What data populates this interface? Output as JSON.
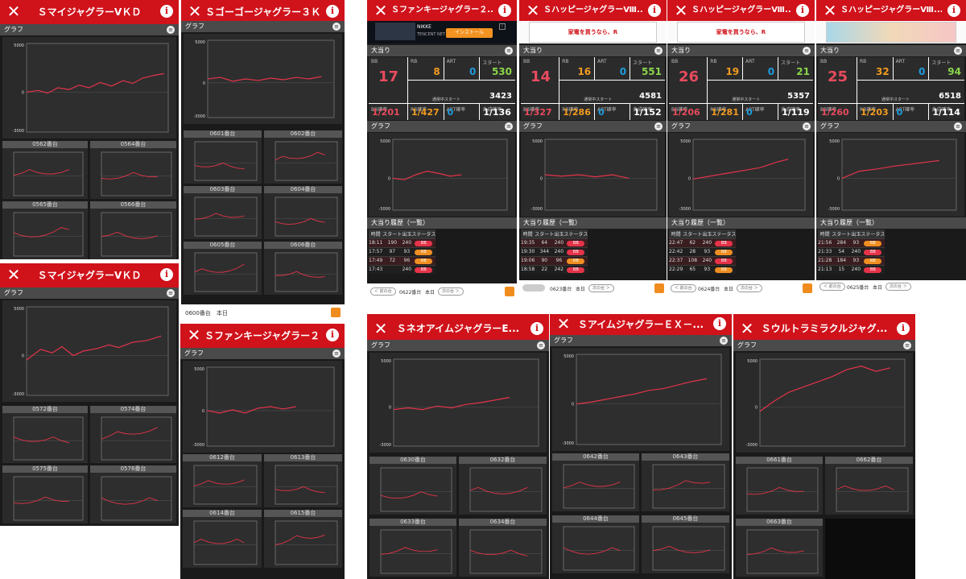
{
  "colors": {
    "header": "#d0121b",
    "line": "#e3344a",
    "panel": "#2a2a2a"
  },
  "icons": {
    "close": "close-icon",
    "info": "info-icon",
    "toggle": "collapse-icon"
  },
  "screens": [
    {
      "title": "ＳマイジャグラーⅤＫＤ",
      "section": "グラフ",
      "axis": {
        "top": "5000",
        "mid": "0",
        "bot": "-3000"
      },
      "minis": [
        {
          "label": "0562番台"
        },
        {
          "label": "0564番台"
        },
        {
          "label": "0565番台"
        },
        {
          "label": "0566番台"
        }
      ]
    },
    {
      "title": "Ｓゴーゴージャグラー３Ｋ...",
      "section": "グラフ",
      "axis": {
        "top": "5000",
        "mid": "0",
        "bot": "-3000"
      },
      "minis": [
        {
          "label": "0601番台"
        },
        {
          "label": "0602番台"
        },
        {
          "label": "0603番台"
        },
        {
          "label": "0604番台"
        },
        {
          "label": "0605番台"
        },
        {
          "label": "0606番台"
        }
      ],
      "footer": "0600番台　本日"
    },
    {
      "title": "ＳマイジャグラーⅤＫＤ",
      "section": "グラフ",
      "axis": {
        "top": "5000",
        "mid": "0",
        "bot": "-3000"
      },
      "minis": [
        {
          "label": "0572番台"
        },
        {
          "label": "0574番台"
        },
        {
          "label": "0575番台"
        },
        {
          "label": "0576番台"
        }
      ]
    },
    {
      "title": "Ｓファンキージャグラー２...",
      "section": "グラフ",
      "axis": {
        "top": "5000",
        "mid": "0",
        "bot": "-3000"
      },
      "minis": [
        {
          "label": "0612番台"
        },
        {
          "label": "0613番台"
        },
        {
          "label": "0614番台"
        },
        {
          "label": "0615番台"
        }
      ]
    },
    {
      "title": "ＳネオアイムジャグラーE...",
      "section": "グラフ",
      "axis": {
        "top": "5000",
        "mid": "0",
        "bot": "-3000"
      },
      "minis": [
        {
          "label": "0630番台"
        },
        {
          "label": "0632番台"
        },
        {
          "label": "0633番台"
        },
        {
          "label": "0634番台"
        }
      ]
    },
    {
      "title": "ＳアイムジャグラーＥＸ－...",
      "section": "グラフ",
      "axis": {
        "top": "5000",
        "mid": "0",
        "bot": "-3000"
      },
      "minis": [
        {
          "label": "0642番台"
        },
        {
          "label": "0643番台"
        },
        {
          "label": "0644番台"
        },
        {
          "label": "0645番台"
        }
      ]
    },
    {
      "title": "Ｓウルトラミラクルジャグ...",
      "section": "グラフ",
      "axis": {
        "top": "5000",
        "mid": "0",
        "bot": "-3000"
      },
      "minis": [
        {
          "label": "0661番台"
        },
        {
          "label": "0662番台"
        },
        {
          "label": "0663番台"
        }
      ]
    }
  ],
  "detail_common": {
    "sec_hits": "大当り",
    "sec_graph": "グラフ",
    "sec_hist": "大当り履歴（一覧）",
    "lbl_bb": "BB",
    "lbl_rb": "RB",
    "lbl_art": "ART",
    "lbl_start": "スタート",
    "lbl_cur": "通常中スタート",
    "lbl_bbp": "BB確率",
    "lbl_rbp": "RB確率",
    "lbl_artp": "ART確率",
    "lbl_total": "合成確率",
    "cols": [
      "時間",
      "スタート",
      "出玉",
      "ステータス"
    ],
    "prev": "＜ 前の台",
    "next": "次の台 ＞",
    "today": "本日",
    "axis": {
      "top": "5000",
      "mid": "0",
      "bot": "-3000"
    }
  },
  "details": [
    {
      "title": "Ｓファンキージャグラー２...",
      "ad": {
        "name": "NIKKE",
        "company": "TENCENT NET",
        "button": "インストール"
      },
      "bb": "17",
      "rb": "8",
      "art": "0",
      "start": "530",
      "cur": "3423",
      "bbp": "1/201",
      "rbp": "1/427",
      "artp": "0",
      "total": "1/136",
      "rows": [
        [
          "18:11",
          "190",
          "240",
          "BB"
        ],
        [
          "17:57",
          "97",
          "93",
          "RB"
        ],
        [
          "17:49",
          "72",
          "96",
          "RB"
        ],
        [
          "17:43",
          "",
          "240",
          "BB"
        ]
      ],
      "unit": "0622番台"
    },
    {
      "title": "ＳハッピージャグラーⅧ...",
      "ad": {
        "text": "家電を買うなら、R"
      },
      "bb": "14",
      "rb": "16",
      "art": "0",
      "start": "551",
      "cur": "4581",
      "bbp": "1/327",
      "rbp": "1/286",
      "artp": "0",
      "total": "1/152",
      "rows": [
        [
          "19:35",
          "64",
          "240",
          "BB"
        ],
        [
          "19:30",
          "344",
          "240",
          "BB"
        ],
        [
          "19:06",
          "90",
          "96",
          "RB"
        ],
        [
          "18:58",
          "22",
          "242",
          "BB"
        ]
      ],
      "unit": "0623番台"
    },
    {
      "title": "ＳハッピージャグラーⅧ...",
      "ad": {
        "text": "家電を買うなら、R"
      },
      "bb": "26",
      "rb": "19",
      "art": "0",
      "start": "21",
      "cur": "5357",
      "bbp": "1/206",
      "rbp": "1/281",
      "artp": "0",
      "total": "1/119",
      "rows": [
        [
          "22:47",
          "62",
          "240",
          "BB"
        ],
        [
          "22:42",
          "28",
          "93",
          "RB"
        ],
        [
          "22:37",
          "108",
          "240",
          "BB"
        ],
        [
          "22:29",
          "65",
          "93",
          "RB"
        ]
      ],
      "unit": "0624番台"
    },
    {
      "title": "ＳハッピージャグラーⅧ...",
      "ad": {
        "text": ""
      },
      "bb": "25",
      "rb": "32",
      "art": "0",
      "start": "94",
      "cur": "6518",
      "bbp": "1/260",
      "rbp": "1/203",
      "artp": "0",
      "total": "1/114",
      "rows": [
        [
          "21:56",
          "284",
          "93",
          "RB"
        ],
        [
          "21:33",
          "54",
          "240",
          "BB"
        ],
        [
          "21:28",
          "184",
          "93",
          "RB"
        ],
        [
          "21:13",
          "15",
          "240",
          "BB"
        ]
      ],
      "unit": "0625番台"
    }
  ]
}
